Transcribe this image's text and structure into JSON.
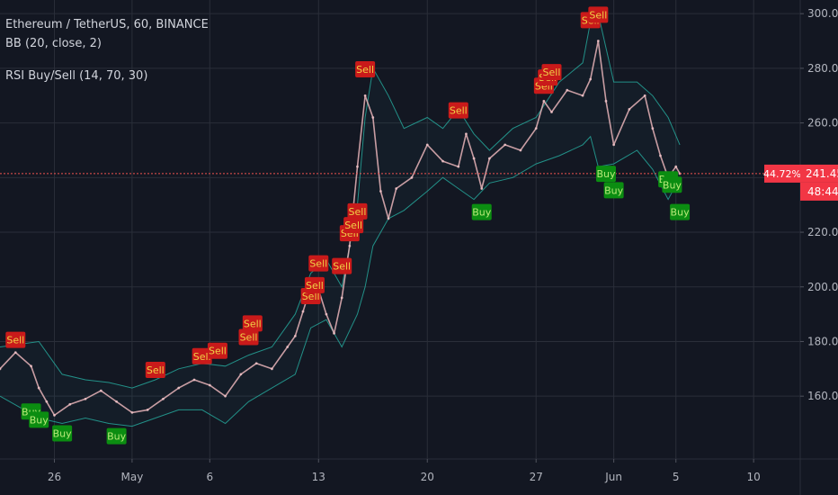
{
  "header": {
    "symbol_line": "Ethereum / TetherUS, 60, BINANCE",
    "indicator_bb": "BB (20, close, 2)",
    "indicator_rsi": "RSI Buy/Sell (14, 70, 30)"
  },
  "price_axis": {
    "ticks": [
      "300.00",
      "280.00",
      "260.00",
      "240.00",
      "220.00",
      "200.00",
      "180.00",
      "160.00"
    ],
    "last_price_label": "241.45",
    "percent_label": "44.72%",
    "countdown_label": "48:44"
  },
  "colors": {
    "background": "#131722",
    "grid": "#2a2e39",
    "axis_text": "#b2b5be",
    "band": "#26a69a",
    "price_line": "#ef5350",
    "sell_box": "#c91a1a",
    "sell_text": "#f0d046",
    "buy_box": "#0b8d11",
    "buy_text": "#b7e878",
    "last_price_tag": "#f23645"
  },
  "chart_data": {
    "type": "line",
    "title": "Ethereum / TetherUS, 60, BINANCE",
    "ylim": [
      137,
      305
    ],
    "xlim": [
      "2019-04-22T12:00",
      "2019-06-13T00:00"
    ],
    "x_ticks": [
      {
        "date": "2019-04-26",
        "label": "26"
      },
      {
        "date": "2019-05-01",
        "label": "May"
      },
      {
        "date": "2019-05-06",
        "label": "6"
      },
      {
        "date": "2019-05-13",
        "label": "13"
      },
      {
        "date": "2019-05-20",
        "label": "20"
      },
      {
        "date": "2019-05-27",
        "label": "27"
      },
      {
        "date": "2019-06-01",
        "label": "Jun"
      },
      {
        "date": "2019-06-05",
        "label": "5"
      },
      {
        "date": "2019-06-10",
        "label": "10"
      }
    ],
    "y_ticks": [
      160,
      180,
      200,
      220,
      240,
      260,
      280,
      300
    ],
    "grid": true,
    "last_price": 241.45,
    "series": [
      {
        "name": "Price",
        "x": [
          "2019-04-22T12:00",
          "2019-04-23T12:00",
          "2019-04-24T12:00",
          "2019-04-25T00:00",
          "2019-04-25T12:00",
          "2019-04-26T00:00",
          "2019-04-27T00:00",
          "2019-04-28T00:00",
          "2019-04-29T00:00",
          "2019-04-30T00:00",
          "2019-05-01T00:00",
          "2019-05-02T00:00",
          "2019-05-03T00:00",
          "2019-05-04T00:00",
          "2019-05-05T00:00",
          "2019-05-06T00:00",
          "2019-05-07T00:00",
          "2019-05-08T00:00",
          "2019-05-09T00:00",
          "2019-05-10T00:00",
          "2019-05-11T00:00",
          "2019-05-11T12:00",
          "2019-05-12T00:00",
          "2019-05-12T12:00",
          "2019-05-13T00:00",
          "2019-05-13T12:00",
          "2019-05-14T00:00",
          "2019-05-14T12:00",
          "2019-05-15T00:00",
          "2019-05-15T12:00",
          "2019-05-16T00:00",
          "2019-05-16T12:00",
          "2019-05-17T00:00",
          "2019-05-17T12:00",
          "2019-05-18T00:00",
          "2019-05-19T00:00",
          "2019-05-20T00:00",
          "2019-05-21T00:00",
          "2019-05-22T00:00",
          "2019-05-22T12:00",
          "2019-05-23T00:00",
          "2019-05-23T12:00",
          "2019-05-24T00:00",
          "2019-05-25T00:00",
          "2019-05-26T00:00",
          "2019-05-27T00:00",
          "2019-05-27T12:00",
          "2019-05-28T00:00",
          "2019-05-29T00:00",
          "2019-05-30T00:00",
          "2019-05-30T12:00",
          "2019-05-31T00:00",
          "2019-05-31T12:00",
          "2019-06-01T00:00",
          "2019-06-02T00:00",
          "2019-06-03T00:00",
          "2019-06-03T12:00",
          "2019-06-04T00:00",
          "2019-06-04T12:00",
          "2019-06-05T00:00",
          "2019-06-05T06:00"
        ],
        "values": [
          170,
          176,
          171,
          163,
          158,
          153,
          157,
          159,
          162,
          158,
          154,
          155,
          159,
          163,
          166,
          164,
          160,
          168,
          172,
          170,
          178,
          182,
          191,
          200,
          199,
          190,
          183,
          196,
          215,
          244,
          270,
          262,
          235,
          225,
          236,
          240,
          252,
          246,
          244,
          256,
          247,
          236,
          247,
          252,
          250,
          258,
          268,
          264,
          272,
          270,
          276,
          290,
          268,
          252,
          265,
          270,
          258,
          248,
          240,
          244,
          241.45
        ]
      },
      {
        "name": "BB upper",
        "x": [
          "2019-04-22T12:00",
          "2019-04-25T00:00",
          "2019-04-26T12:00",
          "2019-04-28T00:00",
          "2019-04-29T12:00",
          "2019-05-01T00:00",
          "2019-05-02T12:00",
          "2019-05-04T00:00",
          "2019-05-05T12:00",
          "2019-05-07T00:00",
          "2019-05-08T12:00",
          "2019-05-10T00:00",
          "2019-05-11T12:00",
          "2019-05-12T12:00",
          "2019-05-13T12:00",
          "2019-05-14T12:00",
          "2019-05-15T12:00",
          "2019-05-16T00:00",
          "2019-05-16T12:00",
          "2019-05-17T12:00",
          "2019-05-18T12:00",
          "2019-05-20T00:00",
          "2019-05-21T00:00",
          "2019-05-22T00:00",
          "2019-05-23T00:00",
          "2019-05-24T00:00",
          "2019-05-25T12:00",
          "2019-05-27T00:00",
          "2019-05-28T12:00",
          "2019-05-30T00:00",
          "2019-05-30T12:00",
          "2019-05-31T00:00",
          "2019-06-01T00:00",
          "2019-06-02T12:00",
          "2019-06-03T12:00",
          "2019-06-04T12:00",
          "2019-06-05T06:00"
        ],
        "values": [
          178,
          180,
          168,
          166,
          165,
          163,
          166,
          170,
          172,
          171,
          175,
          178,
          190,
          205,
          210,
          200,
          230,
          262,
          280,
          270,
          258,
          262,
          258,
          265,
          256,
          250,
          258,
          262,
          275,
          282,
          297,
          300,
          275,
          275,
          270,
          262,
          252
        ]
      },
      {
        "name": "BB lower",
        "x": [
          "2019-04-22T12:00",
          "2019-04-25T00:00",
          "2019-04-26T12:00",
          "2019-04-28T00:00",
          "2019-04-29T12:00",
          "2019-05-01T00:00",
          "2019-05-02T12:00",
          "2019-05-04T00:00",
          "2019-05-05T12:00",
          "2019-05-07T00:00",
          "2019-05-08T12:00",
          "2019-05-10T00:00",
          "2019-05-11T12:00",
          "2019-05-12T12:00",
          "2019-05-13T12:00",
          "2019-05-14T12:00",
          "2019-05-15T12:00",
          "2019-05-16T00:00",
          "2019-05-16T12:00",
          "2019-05-17T12:00",
          "2019-05-18T12:00",
          "2019-05-20T00:00",
          "2019-05-21T00:00",
          "2019-05-22T00:00",
          "2019-05-23T00:00",
          "2019-05-24T00:00",
          "2019-05-25T12:00",
          "2019-05-27T00:00",
          "2019-05-28T12:00",
          "2019-05-30T00:00",
          "2019-05-30T12:00",
          "2019-05-31T00:00",
          "2019-06-01T00:00",
          "2019-06-02T12:00",
          "2019-06-03T12:00",
          "2019-06-04T12:00",
          "2019-06-05T06:00"
        ],
        "values": [
          160,
          152,
          150,
          152,
          150,
          149,
          152,
          155,
          155,
          150,
          158,
          163,
          168,
          185,
          188,
          178,
          190,
          200,
          215,
          225,
          228,
          235,
          240,
          236,
          232,
          238,
          240,
          245,
          248,
          252,
          255,
          244,
          245,
          250,
          243,
          232,
          240
        ]
      }
    ],
    "annotations": [
      {
        "label": "Sell",
        "x": "2019-04-23T12:00",
        "y": 177
      },
      {
        "label": "Buy",
        "x": "2019-04-24T12:00",
        "y": 158
      },
      {
        "label": "Buy",
        "x": "2019-04-25T00:00",
        "y": 155
      },
      {
        "label": "Buy",
        "x": "2019-04-26T12:00",
        "y": 150
      },
      {
        "label": "Buy",
        "x": "2019-04-30T00:00",
        "y": 149
      },
      {
        "label": "Sell",
        "x": "2019-05-02T12:00",
        "y": 166
      },
      {
        "label": "Sell",
        "x": "2019-05-05T12:00",
        "y": 171
      },
      {
        "label": "Sell",
        "x": "2019-05-06T12:00",
        "y": 173
      },
      {
        "label": "Sell",
        "x": "2019-05-08T12:00",
        "y": 178
      },
      {
        "label": "Sell",
        "x": "2019-05-08T18:00",
        "y": 183
      },
      {
        "label": "Sell",
        "x": "2019-05-12T12:00",
        "y": 193
      },
      {
        "label": "Sell",
        "x": "2019-05-12T18:00",
        "y": 197
      },
      {
        "label": "Sell",
        "x": "2019-05-13T00:00",
        "y": 205
      },
      {
        "label": "Sell",
        "x": "2019-05-14T12:00",
        "y": 204
      },
      {
        "label": "Sell",
        "x": "2019-05-15T00:00",
        "y": 216
      },
      {
        "label": "Sell",
        "x": "2019-05-15T06:00",
        "y": 219
      },
      {
        "label": "Sell",
        "x": "2019-05-15T12:00",
        "y": 224
      },
      {
        "label": "Sell",
        "x": "2019-05-16T00:00",
        "y": 276
      },
      {
        "label": "Sell",
        "x": "2019-05-22T00:00",
        "y": 261
      },
      {
        "label": "Buy",
        "x": "2019-05-23T12:00",
        "y": 231
      },
      {
        "label": "Sell",
        "x": "2019-05-27T12:00",
        "y": 270
      },
      {
        "label": "Sell",
        "x": "2019-05-27T18:00",
        "y": 273
      },
      {
        "label": "Sell",
        "x": "2019-05-28T00:00",
        "y": 275
      },
      {
        "label": "Sell",
        "x": "2019-05-30T12:00",
        "y": 294
      },
      {
        "label": "Sell",
        "x": "2019-05-31T00:00",
        "y": 296
      },
      {
        "label": "Buy",
        "x": "2019-05-31T12:00",
        "y": 245
      },
      {
        "label": "Buy",
        "x": "2019-06-01T00:00",
        "y": 239
      },
      {
        "label": "Buy",
        "x": "2019-06-04T12:00",
        "y": 243
      },
      {
        "label": "Buy",
        "x": "2019-06-04T18:00",
        "y": 241
      },
      {
        "label": "Buy",
        "x": "2019-06-05T06:00",
        "y": 231
      }
    ]
  }
}
